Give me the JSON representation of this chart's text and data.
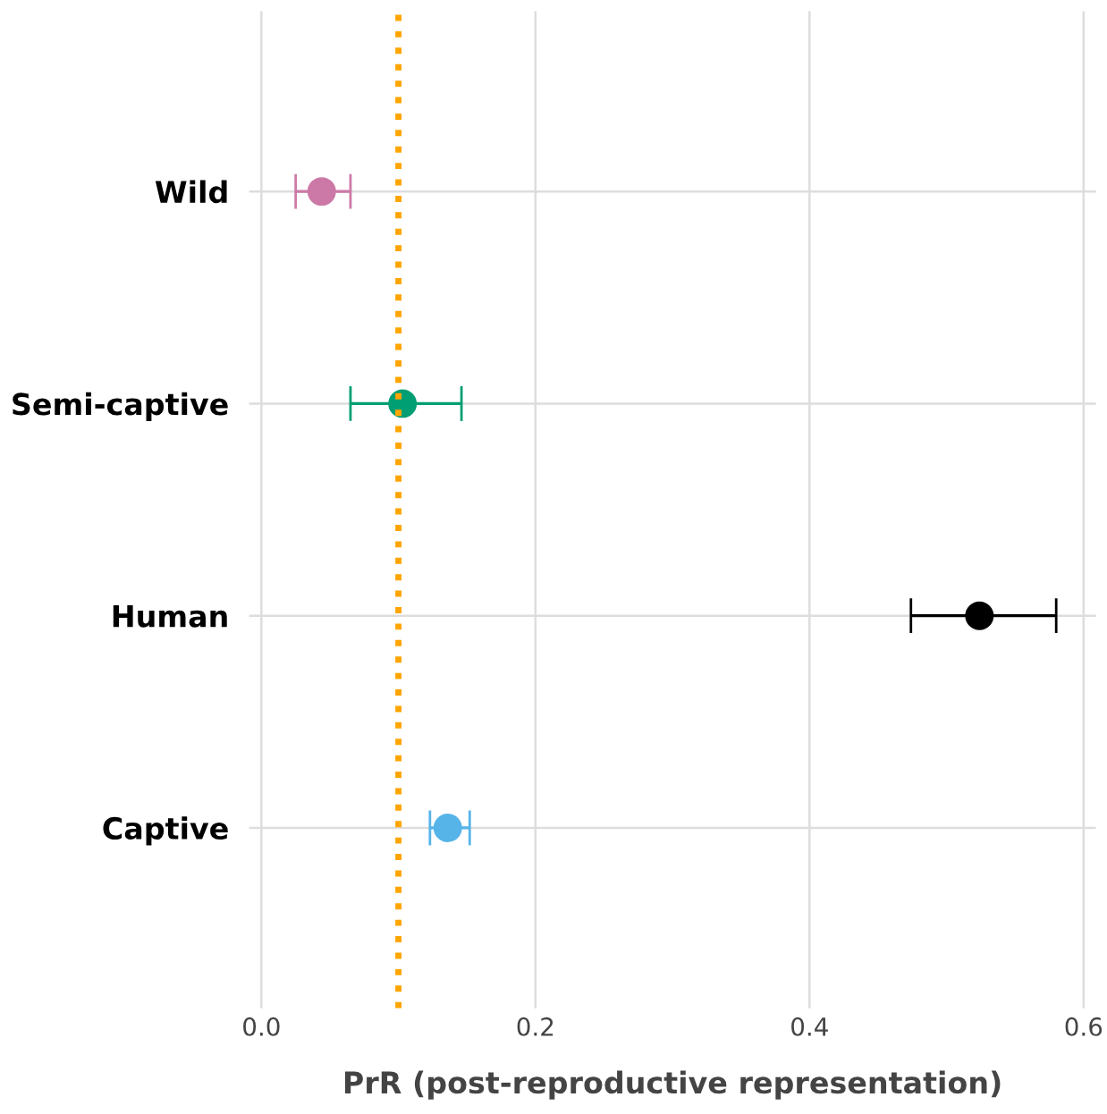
{
  "chart_data": {
    "type": "scatter",
    "orientation": "horizontal",
    "xlabel": "PrR (post-reproductive representation)",
    "categories": [
      "Wild",
      "Semi-captive",
      "Human",
      "Captive"
    ],
    "values": [
      0.044,
      0.103,
      0.524,
      0.136
    ],
    "errors": [
      [
        0.025,
        0.065
      ],
      [
        0.065,
        0.146
      ],
      [
        0.474,
        0.58
      ],
      [
        0.123,
        0.152
      ]
    ],
    "colors": [
      "#cc79a7",
      "#009e73",
      "#000000",
      "#56b4e9"
    ],
    "xlim": [
      -0.009,
      0.609
    ],
    "xticks": [
      {
        "value": 0,
        "label": "0.0"
      },
      0.2,
      0.4,
      0.6
    ],
    "ref_lines": [
      {
        "axis": "x",
        "value": 0.1,
        "color": "#ffa500",
        "line_style": "dotted"
      }
    ],
    "grid": true,
    "marker": "circle"
  }
}
